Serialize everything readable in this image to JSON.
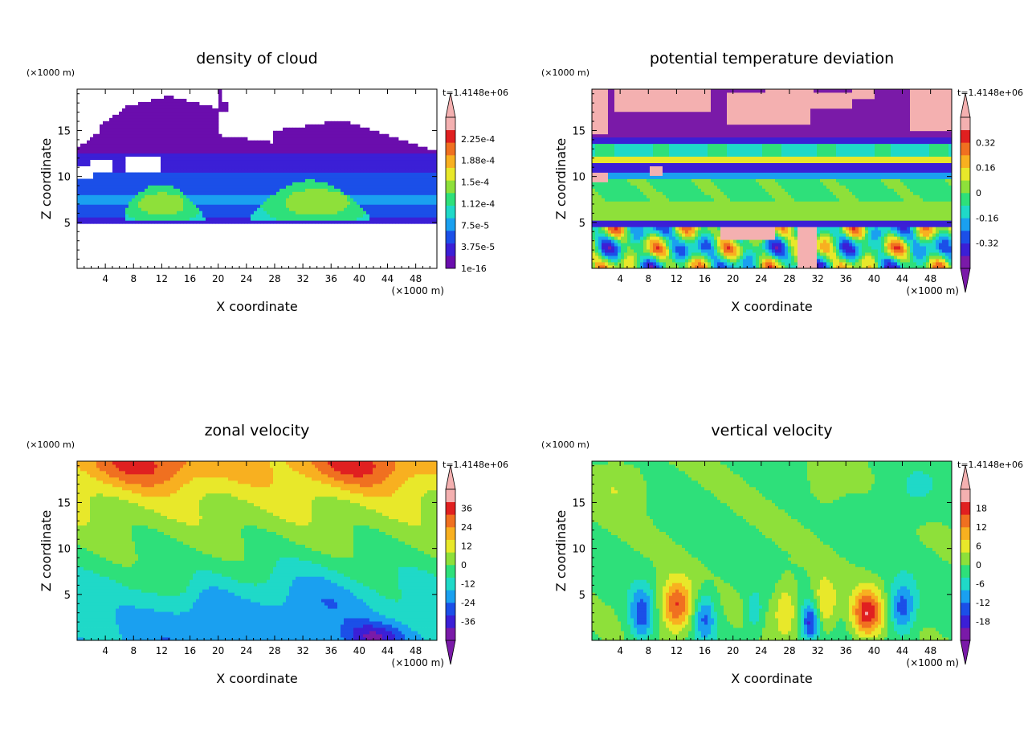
{
  "figure": {
    "x_unit": "(×1000 m)",
    "y_unit": "(×1000 m)",
    "xlabel": "X coordinate",
    "ylabel": "Z coordinate",
    "time_label": "t=1.4148e+06"
  },
  "chart_data": [
    {
      "type": "heatmap",
      "title": "density of cloud",
      "xlabel": "X coordinate",
      "ylabel": "Z coordinate",
      "x_unit": "(×1000 m)",
      "y_unit": "(×1000 m)",
      "xlim": [
        0,
        51
      ],
      "ylim": [
        0,
        19.5
      ],
      "xticks": [
        4,
        8,
        12,
        16,
        20,
        24,
        28,
        32,
        36,
        40,
        44,
        48
      ],
      "yticks": [
        5,
        10,
        15
      ],
      "time_label": "t=1.4148e+06",
      "colorbar_labels": [
        "1e-16",
        "3.75e-5",
        "7.5e-5",
        "1.12e-4",
        "1.5e-4",
        "1.88e-4",
        "2.25e-4"
      ],
      "colorbar_extend": "max",
      "colormap": [
        "#6a0dad",
        "#3b1fd6",
        "#1b4fe8",
        "#1aa0f0",
        "#1fd9c8",
        "#2ee07a",
        "#8ee03a",
        "#e8e82a",
        "#f8b020",
        "#f07020",
        "#e02020",
        "#f4b0b0"
      ]
    },
    {
      "type": "heatmap",
      "title": "potential temperature deviation",
      "xlabel": "X coordinate",
      "ylabel": "Z coordinate",
      "x_unit": "(×1000 m)",
      "y_unit": "(×1000 m)",
      "xlim": [
        0,
        51
      ],
      "ylim": [
        0,
        19.5
      ],
      "xticks": [
        4,
        8,
        12,
        16,
        20,
        24,
        28,
        32,
        36,
        40,
        44,
        48
      ],
      "yticks": [
        5,
        10,
        15
      ],
      "time_label": "t=1.4148e+06",
      "colorbar_labels": [
        "-0.32",
        "-0.16",
        "0",
        "0.16",
        "0.32"
      ],
      "colorbar_extend": "both",
      "colormap": [
        "#7a1aa8",
        "#3b1fd6",
        "#1b4fe8",
        "#1aa0f0",
        "#1fd9c8",
        "#2ee07a",
        "#8ee03a",
        "#e8e82a",
        "#f8b020",
        "#f07020",
        "#e02020",
        "#f4b0b0"
      ]
    },
    {
      "type": "heatmap",
      "title": "zonal velocity",
      "xlabel": "X coordinate",
      "ylabel": "Z coordinate",
      "x_unit": "(×1000 m)",
      "y_unit": "(×1000 m)",
      "xlim": [
        0,
        51
      ],
      "ylim": [
        0,
        19.5
      ],
      "xticks": [
        4,
        8,
        12,
        16,
        20,
        24,
        28,
        32,
        36,
        40,
        44,
        48
      ],
      "yticks": [
        5,
        10,
        15
      ],
      "time_label": "t=1.4148e+06",
      "colorbar_labels": [
        "-36",
        "-24",
        "-12",
        "0",
        "12",
        "24",
        "36"
      ],
      "colorbar_extend": "both",
      "colormap": [
        "#7a1aa8",
        "#3b1fd6",
        "#1b4fe8",
        "#1aa0f0",
        "#1fd9c8",
        "#2ee07a",
        "#8ee03a",
        "#e8e82a",
        "#f8b020",
        "#f07020",
        "#e02020",
        "#f4b0b0"
      ]
    },
    {
      "type": "heatmap",
      "title": "vertical velocity",
      "xlabel": "X coordinate",
      "ylabel": "Z coordinate",
      "x_unit": "(×1000 m)",
      "y_unit": "(×1000 m)",
      "xlim": [
        0,
        51
      ],
      "ylim": [
        0,
        19.5
      ],
      "xticks": [
        4,
        8,
        12,
        16,
        20,
        24,
        28,
        32,
        36,
        40,
        44,
        48
      ],
      "yticks": [
        5,
        10,
        15
      ],
      "time_label": "t=1.4148e+06",
      "colorbar_labels": [
        "-18",
        "-12",
        "-6",
        "0",
        "6",
        "12",
        "18"
      ],
      "colorbar_extend": "both",
      "colormap": [
        "#7a1aa8",
        "#3b1fd6",
        "#1b4fe8",
        "#1aa0f0",
        "#1fd9c8",
        "#2ee07a",
        "#8ee03a",
        "#e8e82a",
        "#f8b020",
        "#f07020",
        "#e02020",
        "#f4b0b0"
      ]
    }
  ]
}
